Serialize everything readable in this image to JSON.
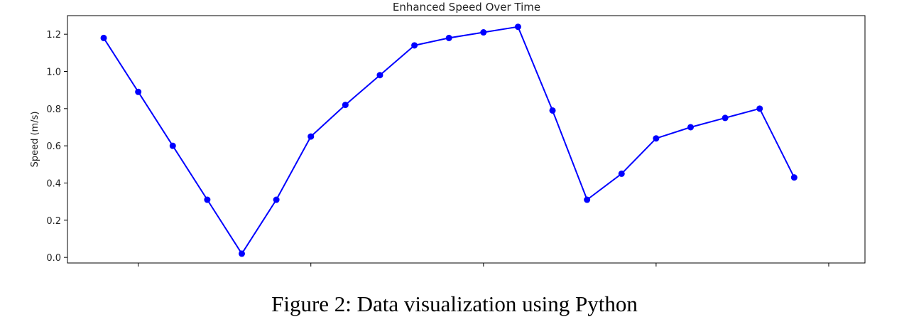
{
  "chart_data": {
    "type": "line",
    "title": "Enhanced Speed Over Time",
    "xlabel": "",
    "ylabel": "Speed (m/s)",
    "ylim": [
      -0.03,
      1.3
    ],
    "xlim": [
      -1.05,
      22.05
    ],
    "yticks": [
      0.0,
      0.2,
      0.4,
      0.6,
      0.8,
      1.0,
      1.2
    ],
    "ytick_labels": [
      "0.0",
      "0.2",
      "0.4",
      "0.6",
      "0.8",
      "1.0",
      "1.2"
    ],
    "xticks_unlabeled": [
      1,
      6,
      11,
      16,
      21
    ],
    "grid": false,
    "legend": "none",
    "series": [
      {
        "color": "#0000ff",
        "marker": "circle",
        "x": [
          0,
          1,
          2,
          3,
          4,
          5,
          6,
          7,
          8,
          9,
          10,
          11,
          12,
          13,
          14,
          15,
          16,
          17,
          18,
          19,
          20
        ],
        "y": [
          1.18,
          0.89,
          0.6,
          0.31,
          0.02,
          0.31,
          0.65,
          0.82,
          0.98,
          1.14,
          1.18,
          1.21,
          1.24,
          0.79,
          0.31,
          0.45,
          0.64,
          0.7,
          0.75,
          0.8,
          0.43
        ]
      }
    ]
  },
  "caption": "Figure 2: Data visualization using Python"
}
